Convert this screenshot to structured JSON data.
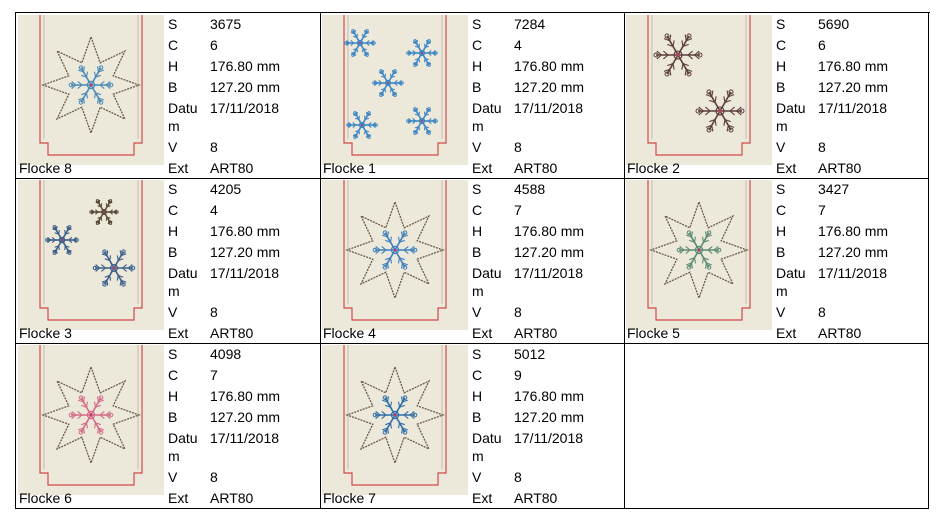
{
  "labels": {
    "s": "S",
    "c": "C",
    "h": "H",
    "b": "B",
    "datum": "Datum",
    "v": "V",
    "ext": "Ext"
  },
  "colors": {
    "fabric": "#ece8da",
    "seam": "#d24a4a",
    "outline": "#6b5a4a"
  },
  "items": [
    {
      "name": "Flocke 8",
      "s": "3675",
      "c": "6",
      "h": "176.80 mm",
      "b": "127.20 mm",
      "datum": "17/11/2018",
      "v": "8",
      "ext": "ART80",
      "motif": "star-flake",
      "flake_color": "#4a89b8"
    },
    {
      "name": "Flocke 1",
      "s": "7284",
      "c": "4",
      "h": "176.80 mm",
      "b": "127.20 mm",
      "datum": "17/11/2018",
      "v": "8",
      "ext": "ART80",
      "motif": "five-flakes",
      "flake_color": "#3e86c4"
    },
    {
      "name": "Flocke 2",
      "s": "5690",
      "c": "6",
      "h": "176.80 mm",
      "b": "127.20 mm",
      "datum": "17/11/2018",
      "v": "8",
      "ext": "ART80",
      "motif": "two-lace-flakes",
      "flake_color": "#5a3e3a"
    },
    {
      "name": "Flocke 3",
      "s": "4205",
      "c": "4",
      "h": "176.80 mm",
      "b": "127.20 mm",
      "datum": "17/11/2018",
      "v": "8",
      "ext": "ART80",
      "motif": "three-flakes",
      "flake_color": "#3a5f8a"
    },
    {
      "name": "Flocke 4",
      "s": "4588",
      "c": "7",
      "h": "176.80 mm",
      "b": "127.20 mm",
      "datum": "17/11/2018",
      "v": "8",
      "ext": "ART80",
      "motif": "star-flake",
      "flake_color": "#3d7fc0"
    },
    {
      "name": "Flocke 5",
      "s": "3427",
      "c": "7",
      "h": "176.80 mm",
      "b": "127.20 mm",
      "datum": "17/11/2018",
      "v": "8",
      "ext": "ART80",
      "motif": "star-flake",
      "flake_color": "#5c8a74"
    },
    {
      "name": "Flocke 6",
      "s": "4098",
      "c": "7",
      "h": "176.80 mm",
      "b": "127.20 mm",
      "datum": "17/11/2018",
      "v": "8",
      "ext": "ART80",
      "motif": "star-flake",
      "flake_color": "#d46a8a"
    },
    {
      "name": "Flocke 7",
      "s": "5012",
      "c": "9",
      "h": "176.80 mm",
      "b": "127.20 mm",
      "datum": "17/11/2018",
      "v": "8",
      "ext": "ART80",
      "motif": "star-flake",
      "flake_color": "#2f6ea8"
    }
  ]
}
